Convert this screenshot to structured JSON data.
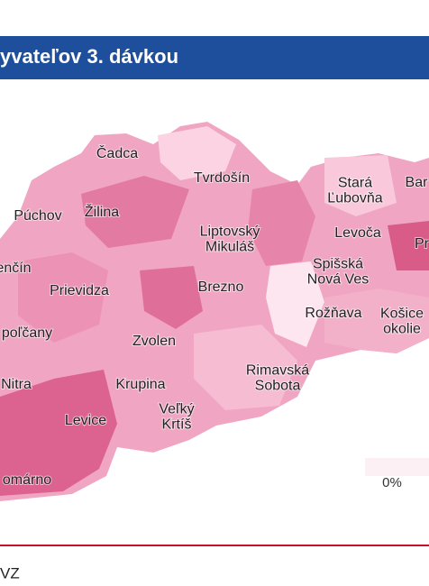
{
  "header": {
    "title": "yvateľov 3. dávkou"
  },
  "map": {
    "labels": [
      {
        "lines": [
          "Čadca"
        ]
      },
      {
        "lines": [
          "Tvrdošín"
        ]
      },
      {
        "lines": [
          "Stará",
          "Ľubovňa"
        ]
      },
      {
        "lines": [
          "Bar"
        ]
      },
      {
        "lines": [
          "Púchov"
        ]
      },
      {
        "lines": [
          "Žilina"
        ]
      },
      {
        "lines": [
          "Liptovský",
          "Mikuláš"
        ]
      },
      {
        "lines": [
          "Levoča"
        ]
      },
      {
        "lines": [
          "Pr"
        ]
      },
      {
        "lines": [
          "enčín"
        ]
      },
      {
        "lines": [
          "Prievidza"
        ]
      },
      {
        "lines": [
          "Spišská",
          "Nová Ves"
        ]
      },
      {
        "lines": [
          "Brezno"
        ]
      },
      {
        "lines": [
          "Rožňava"
        ]
      },
      {
        "lines": [
          "Košice",
          "okolie"
        ]
      },
      {
        "lines": [
          "poľčany"
        ]
      },
      {
        "lines": [
          "Zvolen"
        ]
      },
      {
        "lines": [
          "Nitra"
        ]
      },
      {
        "lines": [
          "Krupina"
        ]
      },
      {
        "lines": [
          "Rimavská",
          "Sobota"
        ]
      },
      {
        "lines": [
          "Levice"
        ]
      },
      {
        "lines": [
          "Veľký",
          "Krtíš"
        ]
      },
      {
        "lines": [
          "omárno"
        ]
      }
    ]
  },
  "legend": {
    "min_label": "0%"
  },
  "footer": {
    "source": "VZ"
  }
}
